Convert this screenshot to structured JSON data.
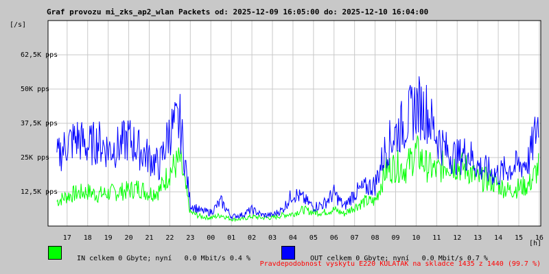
{
  "chart_data": {
    "type": "line",
    "title": "Graf provozu mi_zks_ap2_wlan Packets od: 2025-12-09 16:05:00 do: 2025-12-10 16:04:00",
    "ylabel": "[/s]",
    "xlabel": "[h]",
    "ylim": [
      0,
      75000
    ],
    "y_ticks": [
      {
        "value": 12500,
        "label": "12,5K pps"
      },
      {
        "value": 25000,
        "label": "25K pps"
      },
      {
        "value": 37500,
        "label": "37,5K pps"
      },
      {
        "value": 50000,
        "label": "50K pps"
      },
      {
        "value": 62500,
        "label": "62,5K pps"
      }
    ],
    "x_ticks": [
      "17",
      "18",
      "19",
      "20",
      "21",
      "22",
      "23",
      "00",
      "01",
      "02",
      "03",
      "04",
      "05",
      "06",
      "07",
      "08",
      "09",
      "10",
      "11",
      "12",
      "13",
      "14",
      "15",
      "16"
    ],
    "grid": true,
    "x_hours": [
      16.5,
      17,
      17.5,
      18,
      18.5,
      19,
      19.5,
      20,
      20.5,
      21,
      21.5,
      22,
      22.5,
      23,
      23.5,
      24,
      24.5,
      25,
      25.5,
      26,
      26.5,
      27,
      27.5,
      28,
      28.5,
      29,
      29.5,
      30,
      30.5,
      31,
      31.5,
      32,
      32.5,
      33,
      33.5,
      34,
      34.5,
      35,
      35.5,
      36,
      36.5,
      37,
      37.5,
      38,
      38.5,
      39,
      39.5,
      40
    ],
    "series": [
      {
        "name": "IN",
        "color": "#00ff00",
        "values": [
          9000,
          11000,
          12000,
          12500,
          11500,
          12000,
          12500,
          13000,
          14000,
          12000,
          13000,
          20000,
          24000,
          5000,
          3500,
          3000,
          4000,
          2500,
          2500,
          3500,
          3000,
          3000,
          4000,
          4500,
          6000,
          5000,
          5000,
          6000,
          4500,
          7000,
          9000,
          9000,
          20000,
          22000,
          21000,
          27000,
          22000,
          20000,
          23000,
          22000,
          21000,
          17000,
          17000,
          15000,
          13000,
          14000,
          15000,
          22000
        ]
      },
      {
        "name": "OUT",
        "color": "#0000ff",
        "values": [
          25000,
          30000,
          32000,
          29000,
          31000,
          28000,
          29000,
          32000,
          28000,
          25000,
          22000,
          35000,
          38000,
          8000,
          5500,
          5000,
          9000,
          3500,
          4000,
          6000,
          4000,
          4000,
          6000,
          12000,
          10000,
          7000,
          8000,
          12000,
          7000,
          12000,
          14000,
          15000,
          28000,
          34000,
          38000,
          44000,
          42000,
          33000,
          27000,
          25000,
          27000,
          22000,
          20000,
          19000,
          21000,
          22000,
          24000,
          40000
        ]
      }
    ]
  },
  "legend": {
    "in": {
      "label": "IN celkem 0 Gbyte; nyní",
      "rate": "0.0 Mbit/s 0.4 %",
      "color": "#00ff00"
    },
    "out": {
      "label": "OUT celkem 0 Gbyte; nyní",
      "rate": "0.0 Mbit/s 0.7 %",
      "color": "#0000ff"
    }
  },
  "footer": "Pravdepodobnost vyskytu E220 KULATAK na skladce 1435 z 1440 (99.7 %)"
}
